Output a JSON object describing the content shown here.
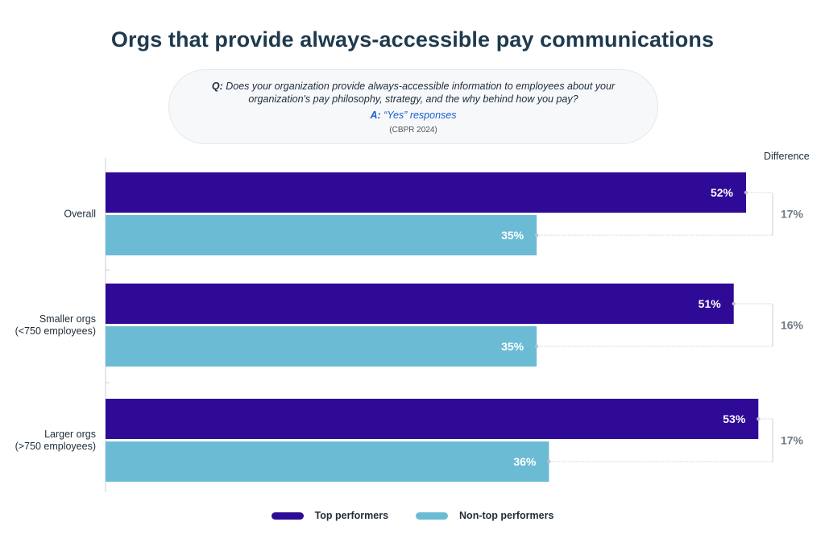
{
  "title": "Orgs that provide always-accessible pay communications",
  "question": {
    "q_label": "Q:",
    "q_line1": "Does your organization provide always-accessible information to employees about your",
    "q_line2": "organization's pay philosophy, strategy, and the why behind how you pay?",
    "a_label": "A:",
    "a_text": "“Yes” responses",
    "source": "(CBPR 2024)"
  },
  "difference_header": "Difference",
  "colors": {
    "top": "#2e0a96",
    "nontop": "#6bbbd4",
    "diff": "#6e7b86",
    "axis": "#c9cfd4"
  },
  "chart_data": {
    "type": "bar",
    "orientation": "horizontal",
    "categories": [
      [
        "Overall"
      ],
      [
        "Smaller orgs",
        "(<750 employees)"
      ],
      [
        "Larger orgs",
        "(>750 employees)"
      ]
    ],
    "series": [
      {
        "name": "Top performers",
        "values": [
          52,
          51,
          53
        ],
        "labels": [
          "52%",
          "51%",
          "53%"
        ]
      },
      {
        "name": "Non-top performers",
        "values": [
          35,
          35,
          36
        ],
        "labels": [
          "35%",
          "35%",
          "36%"
        ]
      }
    ],
    "differences": [
      "17%",
      "16%",
      "17%"
    ],
    "xlim": [
      0,
      60
    ]
  },
  "legend": [
    {
      "label": "Top performers",
      "color": "#2e0a96"
    },
    {
      "label": "Non-top performers",
      "color": "#6bbbd4"
    }
  ]
}
